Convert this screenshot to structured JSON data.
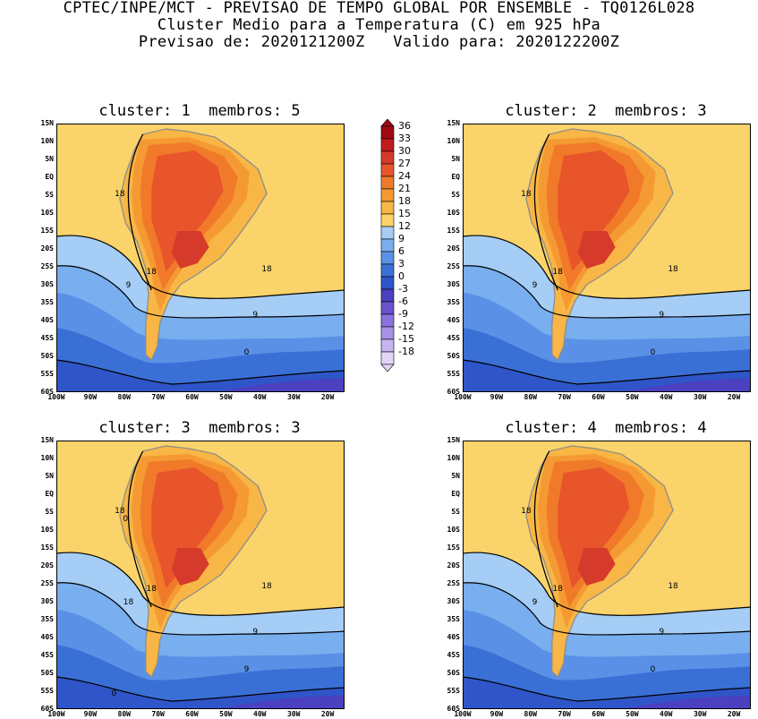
{
  "title": {
    "line1": "CPTEC/INPE/MCT - PREVISAO DE TEMPO GLOBAL POR ENSEMBLE - TQ0126L028",
    "line2": "Cluster Medio para a Temperatura (C) em 925 hPa",
    "line3": "Previsao de: 2020121200Z   Valido para: 2020122200Z"
  },
  "panels": [
    {
      "title": "cluster: 1  membros: 5",
      "contour_labels": [
        "18",
        "18",
        "18",
        "9",
        "9",
        "0"
      ]
    },
    {
      "title": "cluster: 2  membros: 3",
      "contour_labels": [
        "18",
        "18",
        "18",
        "9",
        "9",
        "0"
      ]
    },
    {
      "title": "cluster: 3  membros: 3",
      "contour_labels": [
        "18",
        "18",
        "18",
        "18",
        "9",
        "9",
        "0",
        "0"
      ]
    },
    {
      "title": "cluster: 4  membros: 4",
      "contour_labels": [
        "18",
        "18",
        "18",
        "9",
        "9",
        "0"
      ]
    }
  ],
  "lat_labels": [
    "15N",
    "10N",
    "5N",
    "EQ",
    "5S",
    "10S",
    "15S",
    "20S",
    "25S",
    "30S",
    "35S",
    "40S",
    "45S",
    "50S",
    "55S",
    "60S"
  ],
  "lon_labels": [
    "100W",
    "90W",
    "80W",
    "70W",
    "60W",
    "50W",
    "40W",
    "30W",
    "20W"
  ],
  "colorbar": {
    "labels": [
      "36",
      "33",
      "30",
      "27",
      "24",
      "21",
      "18",
      "15",
      "12",
      "9",
      "6",
      "3",
      "0",
      "-3",
      "-6",
      "-9",
      "-12",
      "-15",
      "-18"
    ],
    "colors": [
      "#9e0a12",
      "#c11b1b",
      "#d63a2a",
      "#e8552a",
      "#f07a2a",
      "#f59a32",
      "#f7b645",
      "#fad36a",
      "#a5cdf5",
      "#79aeef",
      "#5a91e6",
      "#3a70d6",
      "#2f55c8",
      "#4a40c0",
      "#6a52cc",
      "#8a72dc",
      "#a592e4",
      "#c4b4f0",
      "#e2d6f8"
    ]
  }
}
